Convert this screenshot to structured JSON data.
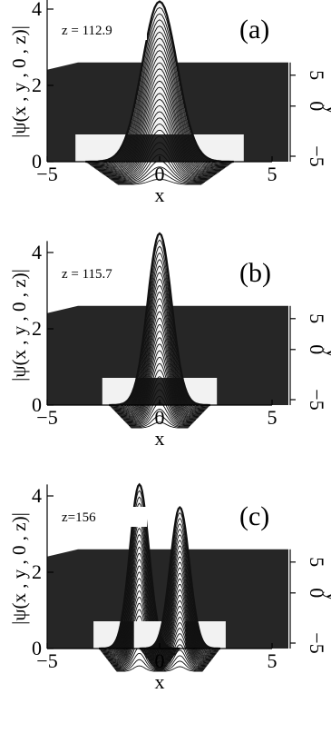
{
  "chart_data": [
    {
      "type": "surface",
      "panel_label": "(a)",
      "annotation": "z = 112.9",
      "xlabel": "x",
      "ylabel": "|ψ(x , y , 0 , z)|",
      "zlabel": "y",
      "xlim": [
        -5,
        5
      ],
      "ylim": [
        0,
        4
      ],
      "zlim": [
        -5,
        5
      ],
      "x_ticks": [
        "−5",
        "0",
        "5"
      ],
      "y_ticks": [
        "0",
        "2",
        "4"
      ],
      "z_ticks": [
        "−5",
        "0",
        "5"
      ],
      "surface": {
        "lobes": [
          {
            "x_center": 0,
            "amplitude": 4.2,
            "width": 1.1
          }
        ],
        "plane_height": 2.6
      }
    },
    {
      "type": "surface",
      "panel_label": "(b)",
      "annotation": "z = 115.7",
      "xlabel": "x",
      "ylabel": "|ψ(x , y , 0 , z)|",
      "zlabel": "y",
      "xlim": [
        -5,
        5
      ],
      "ylim": [
        0,
        4
      ],
      "zlim": [
        -5,
        5
      ],
      "x_ticks": [
        "−5",
        "0",
        "5"
      ],
      "y_ticks": [
        "0",
        "2",
        "4"
      ],
      "z_ticks": [
        "−5",
        "0",
        "5"
      ],
      "surface": {
        "lobes": [
          {
            "x_center": 0,
            "amplitude": 4.5,
            "width": 0.75
          }
        ],
        "plane_height": 2.6
      }
    },
    {
      "type": "surface",
      "panel_label": "(c)",
      "annotation": "z=156",
      "xlabel": "x",
      "ylabel": "|ψ(x , y , 0 , z)|",
      "zlabel": "y",
      "xlim": [
        -5,
        5
      ],
      "ylim": [
        0,
        4
      ],
      "zlim": [
        -5,
        5
      ],
      "x_ticks": [
        "−5",
        "0",
        "5"
      ],
      "y_ticks": [
        "0",
        "2",
        "4"
      ],
      "z_ticks": [
        "−5",
        "0",
        "5"
      ],
      "surface": {
        "lobes": [
          {
            "x_center": -0.9,
            "amplitude": 4.3,
            "width": 0.6
          },
          {
            "x_center": 0.9,
            "amplitude": 3.7,
            "width": 0.6
          }
        ],
        "plane_height": 2.6
      }
    }
  ]
}
